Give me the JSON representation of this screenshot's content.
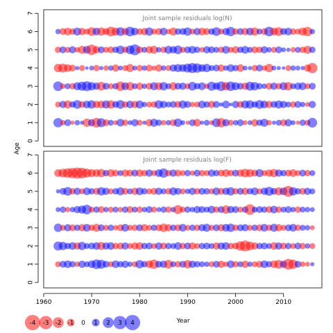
{
  "chart_data": {
    "type": "scatter",
    "ylabel": "Age",
    "xlabel": "Year",
    "xlim": [
      1960,
      2018
    ],
    "ylim": [
      -0.3,
      7.2
    ],
    "x_ticks": [
      1960,
      1970,
      1980,
      1990,
      2000,
      2010
    ],
    "y_ticks": [
      0,
      1,
      2,
      3,
      4,
      5,
      6,
      7
    ],
    "ages": [
      1,
      2,
      3,
      4,
      5,
      6
    ],
    "first_year": 1963,
    "last_year": 2016,
    "colors": {
      "negative": "#ff0000",
      "positive": "#0000ff"
    },
    "panels": [
      {
        "title": "Joint sample residuals log(N)",
        "residuals": {
          "1": [
            1.5,
            -0.5,
            0.8,
            -0.3,
            0.5,
            0.3,
            -1.2,
            0.9,
            -1.6,
            1.4,
            -0.8,
            0.6,
            -0.4,
            1.0,
            -0.7,
            0.4,
            0.9,
            -0.6,
            0.3,
            -0.9,
            1.1,
            0.7,
            -0.5,
            0.5,
            -0.8,
            1.2,
            0.4,
            -0.3,
            0.8,
            -1.0,
            0.3,
            0.6,
            -0.4,
            1.3,
            -1.5,
            0.9,
            -0.6,
            0.5,
            0.8,
            -0.4,
            0.4,
            -0.9,
            0.7,
            1.1,
            -0.5,
            0.3,
            0.6,
            -0.8,
            0.9,
            0.4,
            -0.3,
            0.7,
            -0.6,
            1.6
          ],
          "2": [
            -0.6,
            0.9,
            -1.1,
            0.7,
            1.3,
            -0.8,
            1.0,
            1.2,
            -0.9,
            -1.0,
            1.1,
            -1.2,
            0.8,
            1.3,
            -0.7,
            1.0,
            -0.9,
            1.1,
            0.5,
            -0.6,
            -0.7,
            1.2,
            0.9,
            0.6,
            0.8,
            -0.8,
            1.1,
            0.8,
            -0.5,
            -0.6,
            1.0,
            0.7,
            -0.9,
            0.8,
            0.3,
            1.0,
            0.2,
            0.9,
            -0.8,
            1.1,
            1.2,
            0.7,
            1.3,
            1.0,
            -0.9,
            0.8,
            1.1,
            0.9,
            0.6,
            -0.7,
            0.8,
            0.5,
            -0.4,
            0.9
          ],
          "3": [
            1.6,
            -0.5,
            0.6,
            -0.7,
            1.1,
            1.4,
            1.7,
            1.2,
            0.9,
            -1.3,
            0.8,
            -0.6,
            0.7,
            -1.5,
            1.0,
            -1.2,
            0.6,
            -0.9,
            0.5,
            -0.8,
            1.1,
            -1.0,
            1.2,
            0.6,
            -1.1,
            0.8,
            0.9,
            -0.6,
            1.3,
            0.7,
            1.0,
            -0.5,
            1.4,
            0.9,
            1.6,
            -1.2,
            1.5,
            1.1,
            0.8,
            -0.9,
            1.4,
            1.2,
            0.7,
            0.5,
            -0.8,
            0.9,
            -0.7,
            1.1,
            -1.2,
            0.6,
            0.9,
            1.0,
            -0.6,
            0.8
          ],
          "4": [
            -1.2,
            -1.4,
            -1.0,
            -0.8,
            0.3,
            -0.6,
            0.2,
            0.4,
            -0.7,
            0.3,
            -0.5,
            0.5,
            -0.9,
            0.4,
            -0.6,
            -1.1,
            0.4,
            -0.7,
            0.5,
            -0.8,
            -0.4,
            -0.9,
            0.5,
            -0.6,
            0.9,
            1.1,
            1.0,
            1.4,
            1.7,
            1.5,
            1.0,
            1.2,
            0.6,
            0.8,
            -0.9,
            0.5,
            1.0,
            0.7,
            -1.0,
            0.4,
            0.3,
            -0.7,
            0.8,
            -0.5,
            -1.2,
            0.4,
            0.3,
            0.2,
            -0.6,
            0.5,
            0.4,
            0.3,
            -0.9,
            -1.8
          ],
          "5": [
            -0.7,
            0.8,
            -0.6,
            0.9,
            -0.5,
            -1.1,
            1.0,
            -1.9,
            -0.9,
            0.8,
            -0.6,
            -0.8,
            0.7,
            1.2,
            -0.7,
            1.3,
            2.0,
            -0.8,
            0.6,
            -0.9,
            -1.1,
            0.5,
            -0.7,
            1.1,
            0.9,
            1.3,
            -0.6,
            0.8,
            1.0,
            0.7,
            -0.5,
            0.9,
            0.8,
            0.6,
            -0.7,
            1.0,
            -0.6,
            -0.9,
            0.7,
            1.0,
            0.6,
            -0.8,
            -0.7,
            0.9,
            0.5,
            -0.6,
            0.8,
            0.4,
            0.3,
            -0.5,
            0.6,
            -0.7,
            -1.1,
            0.7
          ],
          "6": [
            0.5,
            -0.8,
            -1.0,
            -0.7,
            1.1,
            -0.9,
            -0.6,
            -1.3,
            1.0,
            -1.2,
            -0.8,
            -1.6,
            -1.1,
            1.3,
            -0.9,
            1.6,
            1.0,
            -0.7,
            -0.9,
            1.2,
            -0.6,
            -0.8,
            1.0,
            -0.5,
            -1.1,
            0.7,
            0.8,
            1.2,
            -0.6,
            0.9,
            -1.0,
            -0.8,
            0.7,
            1.3,
            -0.6,
            0.9,
            1.5,
            -0.7,
            0.8,
            -0.9,
            1.0,
            -1.2,
            0.6,
            -0.8,
            1.6,
            -1.0,
            -1.3,
            0.8,
            1.0,
            -0.7,
            -0.6,
            -1.1,
            -1.5,
            0.5
          ]
        }
      },
      {
        "title": "Joint sample residuals log(F)",
        "residuals": {
          "1": [
            -0.6,
            0.8,
            1.0,
            0.7,
            -0.5,
            0.9,
            0.6,
            1.0,
            1.6,
            1.4,
            0.8,
            -0.6,
            1.0,
            0.7,
            0.9,
            0.5,
            -0.6,
            1.2,
            0.7,
            -1.0,
            -1.5,
            0.8,
            0.9,
            -1.3,
            0.6,
            -0.7,
            0.8,
            -1.2,
            0.9,
            0.7,
            0.6,
            0.5,
            -0.6,
            0.8,
            -0.9,
            -0.5,
            1.0,
            -0.7,
            0.6,
            -0.9,
            0.5,
            -0.6,
            -0.8,
            1.0,
            0.7,
            -1.0,
            -1.3,
            0.9,
            -2.0,
            -1.5,
            0.8,
            -0.5,
            -0.4,
            0.3
          ],
          "2": [
            1.4,
            1.2,
            0.7,
            1.0,
            -0.9,
            1.2,
            0.6,
            0.8,
            1.0,
            -1.1,
            0.9,
            1.0,
            -0.7,
            -0.8,
            0.9,
            -0.6,
            -0.9,
            -1.0,
            0.7,
            0.8,
            -0.6,
            0.9,
            -0.8,
            0.7,
            0.6,
            1.0,
            -0.7,
            0.8,
            -0.9,
            -0.6,
            0.7,
            0.8,
            0.6,
            -0.9,
            0.9,
            1.0,
            -0.7,
            -0.8,
            -1.5,
            -2.0,
            -1.3,
            -0.9,
            0.7,
            0.8,
            0.6,
            -1.0,
            0.9,
            -0.8,
            0.7,
            -0.6,
            0.8,
            -0.7,
            0.5,
            -0.6
          ],
          "3": [
            1.2,
            -0.6,
            0.9,
            -0.8,
            0.7,
            -0.9,
            1.0,
            -0.7,
            -1.1,
            0.8,
            -0.6,
            0.7,
            -0.5,
            -0.8,
            1.0,
            -0.6,
            -0.7,
            0.8,
            -0.9,
            -0.6,
            0.7,
            -0.8,
            -1.2,
            -0.9,
            0.7,
            -0.8,
            1.0,
            -0.6,
            0.7,
            -0.7,
            0.9,
            1.1,
            -0.6,
            0.8,
            -0.9,
            1.0,
            1.2,
            -0.7,
            0.8,
            0.9,
            -0.6,
            0.7,
            -0.8,
            1.0,
            -0.7,
            1.1,
            -0.9,
            -0.6,
            0.8,
            1.0,
            -0.7,
            0.6,
            0.5,
            -0.4
          ],
          "4": [
            0.4,
            0.7,
            -0.5,
            0.5,
            0.9,
            1.1,
            1.6,
            -0.6,
            0.7,
            -0.8,
            0.5,
            -0.6,
            0.6,
            -0.5,
            0.7,
            -0.8,
            0.6,
            -0.7,
            0.5,
            0.8,
            -0.6,
            0.4,
            0.7,
            -0.7,
            0.5,
            -1.4,
            -0.6,
            0.7,
            0.5,
            0.9,
            0.8,
            0.6,
            1.0,
            -0.7,
            0.8,
            -1.2,
            0.9,
            0.8,
            -0.6,
            0.7,
            -1.9,
            0.6,
            0.8,
            0.7,
            -0.8,
            1.0,
            -0.7,
            0.6,
            0.8,
            0.5,
            -0.7,
            0.6,
            0.5,
            0.4
          ],
          "5": [
            0.3,
            0.8,
            1.3,
            -0.7,
            0.9,
            -0.6,
            1.0,
            0.7,
            -0.8,
            1.2,
            0.9,
            -0.6,
            0.7,
            1.1,
            -0.8,
            0.6,
            -0.9,
            1.0,
            0.7,
            -0.6,
            -0.8,
            0.9,
            0.6,
            -0.7,
            1.1,
            0.8,
            -0.6,
            0.5,
            0.9,
            -0.7,
            0.8,
            0.7,
            -0.6,
            1.0,
            -0.8,
            0.9,
            1.2,
            -0.7,
            0.8,
            -0.9,
            0.7,
            1.0,
            -0.6,
            0.9,
            1.4,
            0.8,
            -1.1,
            1.0,
            -2.0,
            1.2,
            0.7,
            -0.8,
            0.9,
            0.6
          ],
          "6": [
            -1.0,
            -1.3,
            -1.6,
            -1.8,
            -2.1,
            -1.9,
            -1.4,
            -1.1,
            -1.0,
            -1.2,
            0.7,
            -1.0,
            -0.8,
            0.6,
            -0.9,
            -0.8,
            0.8,
            -0.9,
            -0.7,
            0.9,
            -0.6,
            1.0,
            1.5,
            -0.7,
            0.9,
            -0.8,
            -0.6,
            0.7,
            -0.5,
            0.8,
            -0.7,
            -0.6,
            0.9,
            0.7,
            -0.8,
            -1.0,
            -0.7,
            0.8,
            -0.9,
            -1.3,
            -1.1,
            -0.8,
            1.1,
            -0.6,
            -0.9,
            -1.2,
            0.9,
            0.7,
            -0.8,
            -1.0,
            -0.6,
            0.8,
            -0.7,
            0.6
          ]
        }
      }
    ],
    "legend": {
      "values": [
        -4,
        -3,
        -2,
        -1,
        0,
        1,
        2,
        3,
        4
      ],
      "labels": [
        "-4",
        "-3",
        "-2",
        "-1",
        "0",
        "1",
        "2",
        "3",
        "4"
      ]
    }
  }
}
